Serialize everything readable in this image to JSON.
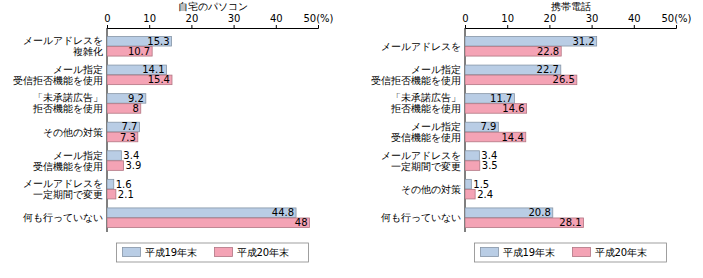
{
  "chart_data": [
    {
      "type": "bar",
      "orientation": "horizontal",
      "title": "自宅のパソコン",
      "categories": [
        "メールアドレスを\n複雑化",
        "メール指定\n受信拒否機能を使用",
        "「未承諾広告」\n拒否機能を使用",
        "その他の対策",
        "メール指定\n受信機能を使用",
        "メールアドレスを\n一定期間で変更",
        "何も行っていない"
      ],
      "series": [
        {
          "name": "平成19年末",
          "color": "#b9cde5",
          "values": [
            15.3,
            14.1,
            9.2,
            7.7,
            3.4,
            1.6,
            44.8
          ]
        },
        {
          "name": "平成20年末",
          "color": "#f4a3b5",
          "values": [
            10.7,
            15.4,
            8.0,
            7.3,
            3.9,
            2.1,
            48.0
          ]
        }
      ],
      "xlim": [
        0,
        50
      ],
      "xticks": [
        0,
        10,
        20,
        30,
        40,
        {
          "value": 50,
          "label": "50(%)"
        }
      ],
      "grid": false,
      "data_labels": true,
      "legend": "bottom"
    },
    {
      "type": "bar",
      "orientation": "horizontal",
      "title": "携帯電話",
      "categories": [
        "メールアドレスを",
        "メール指定\n受信拒否機能を使用",
        "「未承諾広告」\n拒否機能を使用",
        "メール指定\n受信機能を使用",
        "メールアドレスを\n一定期間で変更",
        "その他の対策",
        "何も行っていない"
      ],
      "series": [
        {
          "name": "平成19年末",
          "color": "#b9cde5",
          "values": [
            31.2,
            22.7,
            11.7,
            7.9,
            3.4,
            1.5,
            20.8
          ]
        },
        {
          "name": "平成20年末",
          "color": "#f4a3b5",
          "values": [
            22.8,
            26.5,
            14.6,
            14.4,
            3.5,
            2.4,
            28.1
          ]
        }
      ],
      "xlim": [
        0,
        50
      ],
      "xticks": [
        0,
        10,
        20,
        30,
        40,
        {
          "value": 50,
          "label": "50(%)"
        }
      ],
      "grid": false,
      "data_labels": true,
      "legend": "bottom"
    }
  ]
}
